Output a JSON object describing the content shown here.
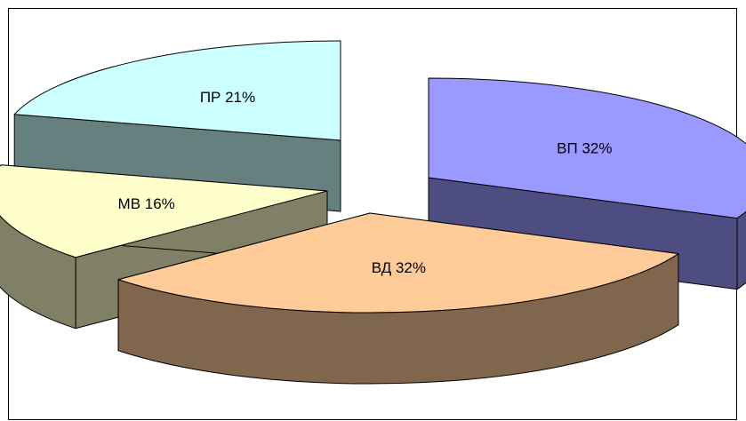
{
  "chart_data": {
    "type": "pie",
    "style": "3d-exploded",
    "title": "",
    "slices": [
      {
        "label": "ВП",
        "value": 32,
        "text": "ВП 32%",
        "top_color": "#9999ff",
        "side_color": "#4d4d82"
      },
      {
        "label": "ВД",
        "value": 32,
        "text": "ВД 32%",
        "top_color": "#ffcc99",
        "side_color": "#7f664d"
      },
      {
        "label": "МВ",
        "value": 16,
        "text": "МВ 16%",
        "top_color": "#ffffcc",
        "side_color": "#808066"
      },
      {
        "label": "ПР",
        "value": 21,
        "text": "ПР 21%",
        "top_color": "#ccffff",
        "side_color": "#668080"
      }
    ],
    "legend": "none"
  }
}
